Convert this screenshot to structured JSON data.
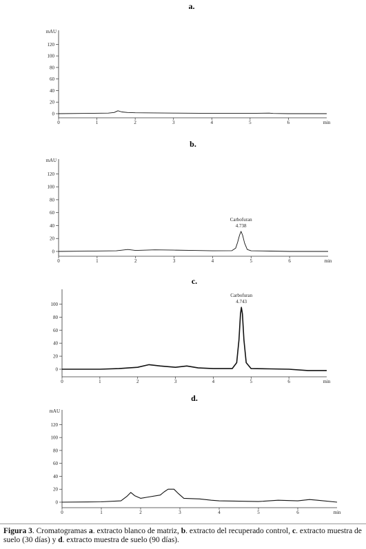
{
  "chart_data": [
    {
      "type": "line",
      "panel": "a.",
      "ylabel": "mAU",
      "xlabel": "min",
      "ylim": [
        0,
        130
      ],
      "xlim": [
        0,
        7
      ],
      "yticks": [
        0,
        20,
        40,
        60,
        80,
        100,
        120
      ],
      "xticks": [
        0,
        1,
        2,
        3,
        4,
        5,
        6
      ],
      "series": [
        {
          "x": [
            0,
            1.3,
            1.45,
            1.55,
            1.65,
            1.8,
            2.0,
            3.0,
            4.0,
            5.0,
            5.5,
            5.6,
            6.0,
            7.0
          ],
          "y": [
            0,
            1,
            2,
            5,
            3,
            2,
            1.5,
            1,
            0.5,
            0.5,
            1,
            0.3,
            0,
            0
          ]
        }
      ],
      "annotations": []
    },
    {
      "type": "line",
      "panel": "b.",
      "ylabel": "mAU",
      "xlabel": "min",
      "ylim": [
        0,
        130
      ],
      "xlim": [
        0,
        7
      ],
      "yticks": [
        0,
        20,
        40,
        60,
        80,
        100,
        120
      ],
      "xticks": [
        0,
        1,
        2,
        3,
        4,
        5,
        6
      ],
      "series": [
        {
          "x": [
            0,
            1.5,
            1.8,
            2.0,
            2.5,
            3.0,
            3.5,
            4.0,
            4.5,
            4.6,
            4.65,
            4.7,
            4.738,
            4.78,
            4.83,
            4.9,
            5.0,
            5.5,
            6.0,
            7.0
          ],
          "y": [
            0,
            1,
            3,
            1.5,
            2.5,
            2,
            1.5,
            1,
            1.2,
            5,
            14,
            25,
            31,
            25,
            13,
            3,
            1,
            0.5,
            0,
            0
          ]
        }
      ],
      "annotations": [
        {
          "label": "Carbofuran",
          "value": "4.738",
          "x": 4.738,
          "y": 31
        }
      ]
    },
    {
      "type": "line",
      "panel": "c.",
      "ylabel": "",
      "xlabel": "min",
      "ylim": [
        0,
        110
      ],
      "xlim": [
        0,
        7
      ],
      "yticks": [
        0,
        20,
        40,
        60,
        80,
        100
      ],
      "xticks": [
        0,
        1,
        2,
        3,
        4,
        5,
        6
      ],
      "series": [
        {
          "x": [
            0,
            1.0,
            1.5,
            2.0,
            2.3,
            2.6,
            3.0,
            3.3,
            3.6,
            4.0,
            4.5,
            4.62,
            4.68,
            4.72,
            4.743,
            4.77,
            4.81,
            4.87,
            5.0,
            5.5,
            6.0,
            6.5,
            7.0
          ],
          "y": [
            0,
            0,
            1,
            3,
            7,
            5,
            3,
            5,
            2,
            1,
            1,
            10,
            45,
            85,
            95,
            85,
            45,
            10,
            1,
            0.5,
            0,
            -2,
            -2
          ]
        }
      ],
      "annotations": [
        {
          "label": "Carbofuran",
          "value": "4.743",
          "x": 4.743,
          "y": 95
        }
      ]
    },
    {
      "type": "line",
      "panel": "d.",
      "ylabel": "mAU",
      "xlabel": "min",
      "ylim": [
        0,
        130
      ],
      "xlim": [
        0,
        7
      ],
      "yticks": [
        0,
        20,
        40,
        60,
        80,
        100,
        120
      ],
      "xticks": [
        0,
        1,
        2,
        3,
        4,
        5,
        6
      ],
      "series": [
        {
          "x": [
            0,
            1.0,
            1.5,
            1.65,
            1.75,
            1.85,
            2.0,
            2.2,
            2.5,
            2.6,
            2.7,
            2.85,
            2.95,
            3.1,
            3.5,
            3.8,
            4.0,
            4.5,
            5.0,
            5.5,
            6.0,
            6.3,
            6.5,
            7.0
          ],
          "y": [
            0,
            0.5,
            2,
            9,
            15,
            10,
            6,
            8,
            11,
            16,
            20,
            20,
            14,
            6,
            5,
            3,
            2,
            1.5,
            1,
            3,
            2,
            4,
            3,
            0
          ]
        }
      ],
      "annotations": []
    }
  ],
  "caption": {
    "figure_label": "Figura 3",
    "t1": ". Cromatogramas ",
    "a": "a",
    "t2": ". extracto blanco de matriz, ",
    "b": "b",
    "t3": ". extracto del recuperado control, ",
    "c": "c",
    "t4": ". extracto muestra de suelo (30 días) y ",
    "d": "d",
    "t5": ". extracto muestra de suelo (90 días)."
  }
}
